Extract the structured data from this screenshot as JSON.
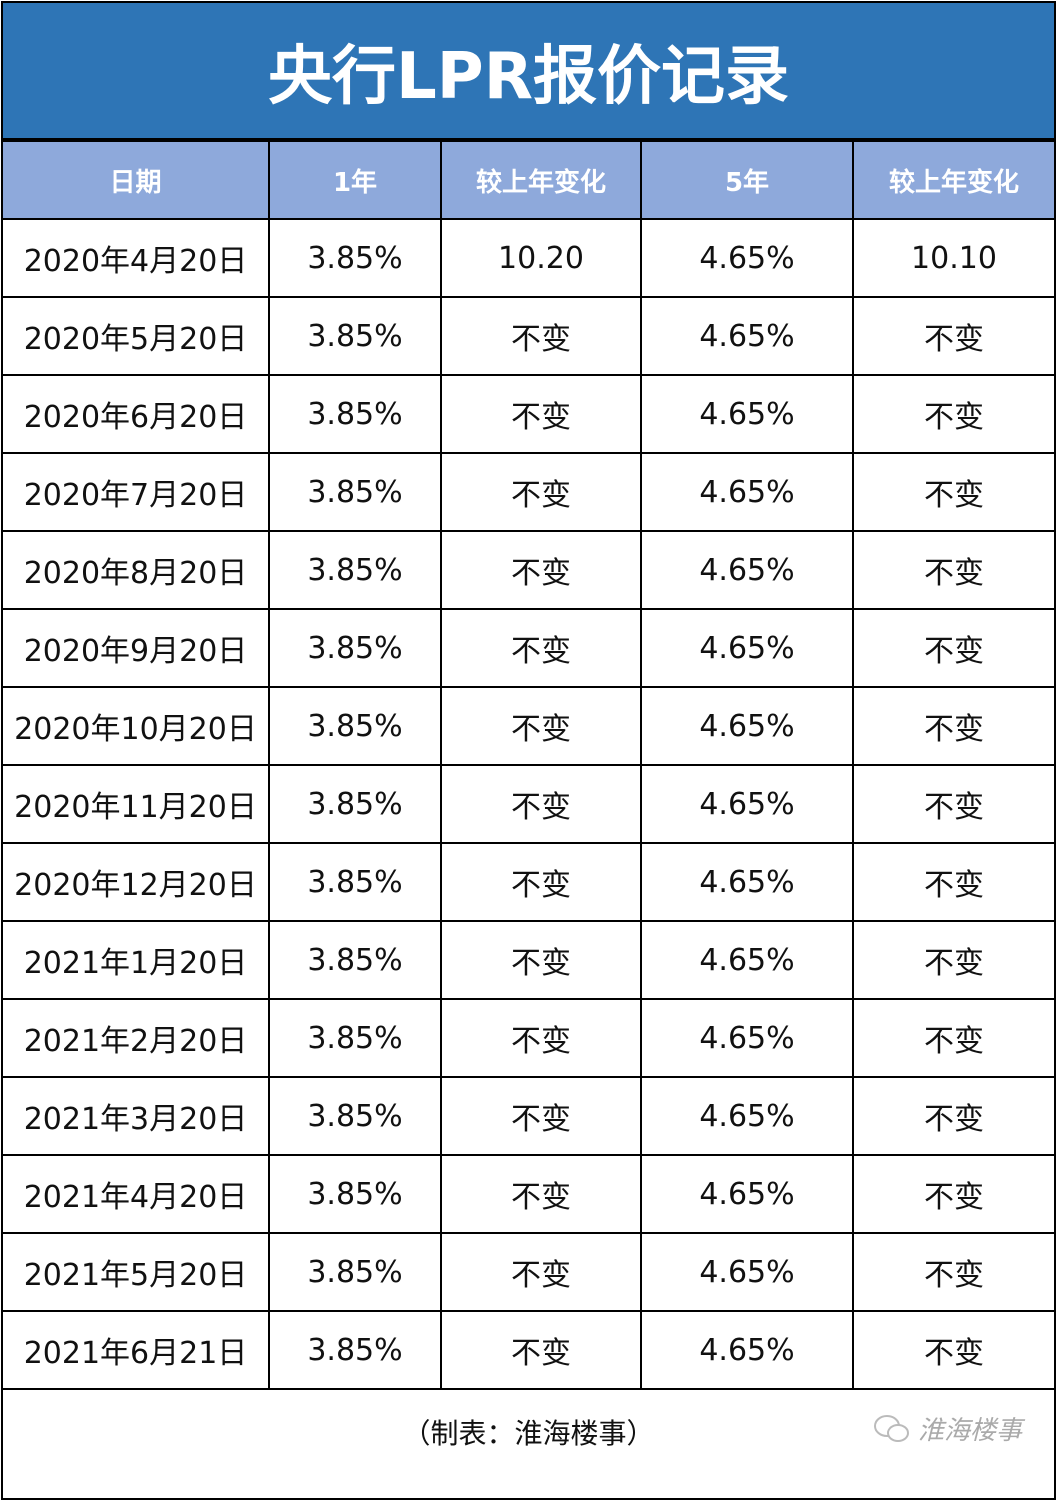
{
  "title": "央行LPR报价记录",
  "headers": [
    "日期",
    "1年",
    "较上年变化",
    "5年",
    "较上年变化"
  ],
  "rows": [
    [
      "2020年4月20日",
      "3.85%",
      "10.20",
      "4.65%",
      "10.10"
    ],
    [
      "2020年5月20日",
      "3.85%",
      "不变",
      "4.65%",
      "不变"
    ],
    [
      "2020年6月20日",
      "3.85%",
      "不变",
      "4.65%",
      "不变"
    ],
    [
      "2020年7月20日",
      "3.85%",
      "不变",
      "4.65%",
      "不变"
    ],
    [
      "2020年8月20日",
      "3.85%",
      "不变",
      "4.65%",
      "不变"
    ],
    [
      "2020年9月20日",
      "3.85%",
      "不变",
      "4.65%",
      "不变"
    ],
    [
      "2020年10月20日",
      "3.85%",
      "不变",
      "4.65%",
      "不变"
    ],
    [
      "2020年11月20日",
      "3.85%",
      "不变",
      "4.65%",
      "不变"
    ],
    [
      "2020年12月20日",
      "3.85%",
      "不变",
      "4.65%",
      "不变"
    ],
    [
      "2021年1月20日",
      "3.85%",
      "不变",
      "4.65%",
      "不变"
    ],
    [
      "2021年2月20日",
      "3.85%",
      "不变",
      "4.65%",
      "不变"
    ],
    [
      "2021年3月20日",
      "3.85%",
      "不变",
      "4.65%",
      "不变"
    ],
    [
      "2021年4月20日",
      "3.85%",
      "不变",
      "4.65%",
      "不变"
    ],
    [
      "2021年5月20日",
      "3.85%",
      "不变",
      "4.65%",
      "不变"
    ],
    [
      "2021年6月21日",
      "3.85%",
      "不变",
      "4.65%",
      "不变"
    ]
  ],
  "footer": {
    "credit": "（制表：淮海楼事）",
    "watermark": "淮海楼事",
    "watermark_icon": "wechat-icon"
  },
  "colors": {
    "title_bg": "#2E75B6",
    "header_bg": "#8EA9DB"
  }
}
